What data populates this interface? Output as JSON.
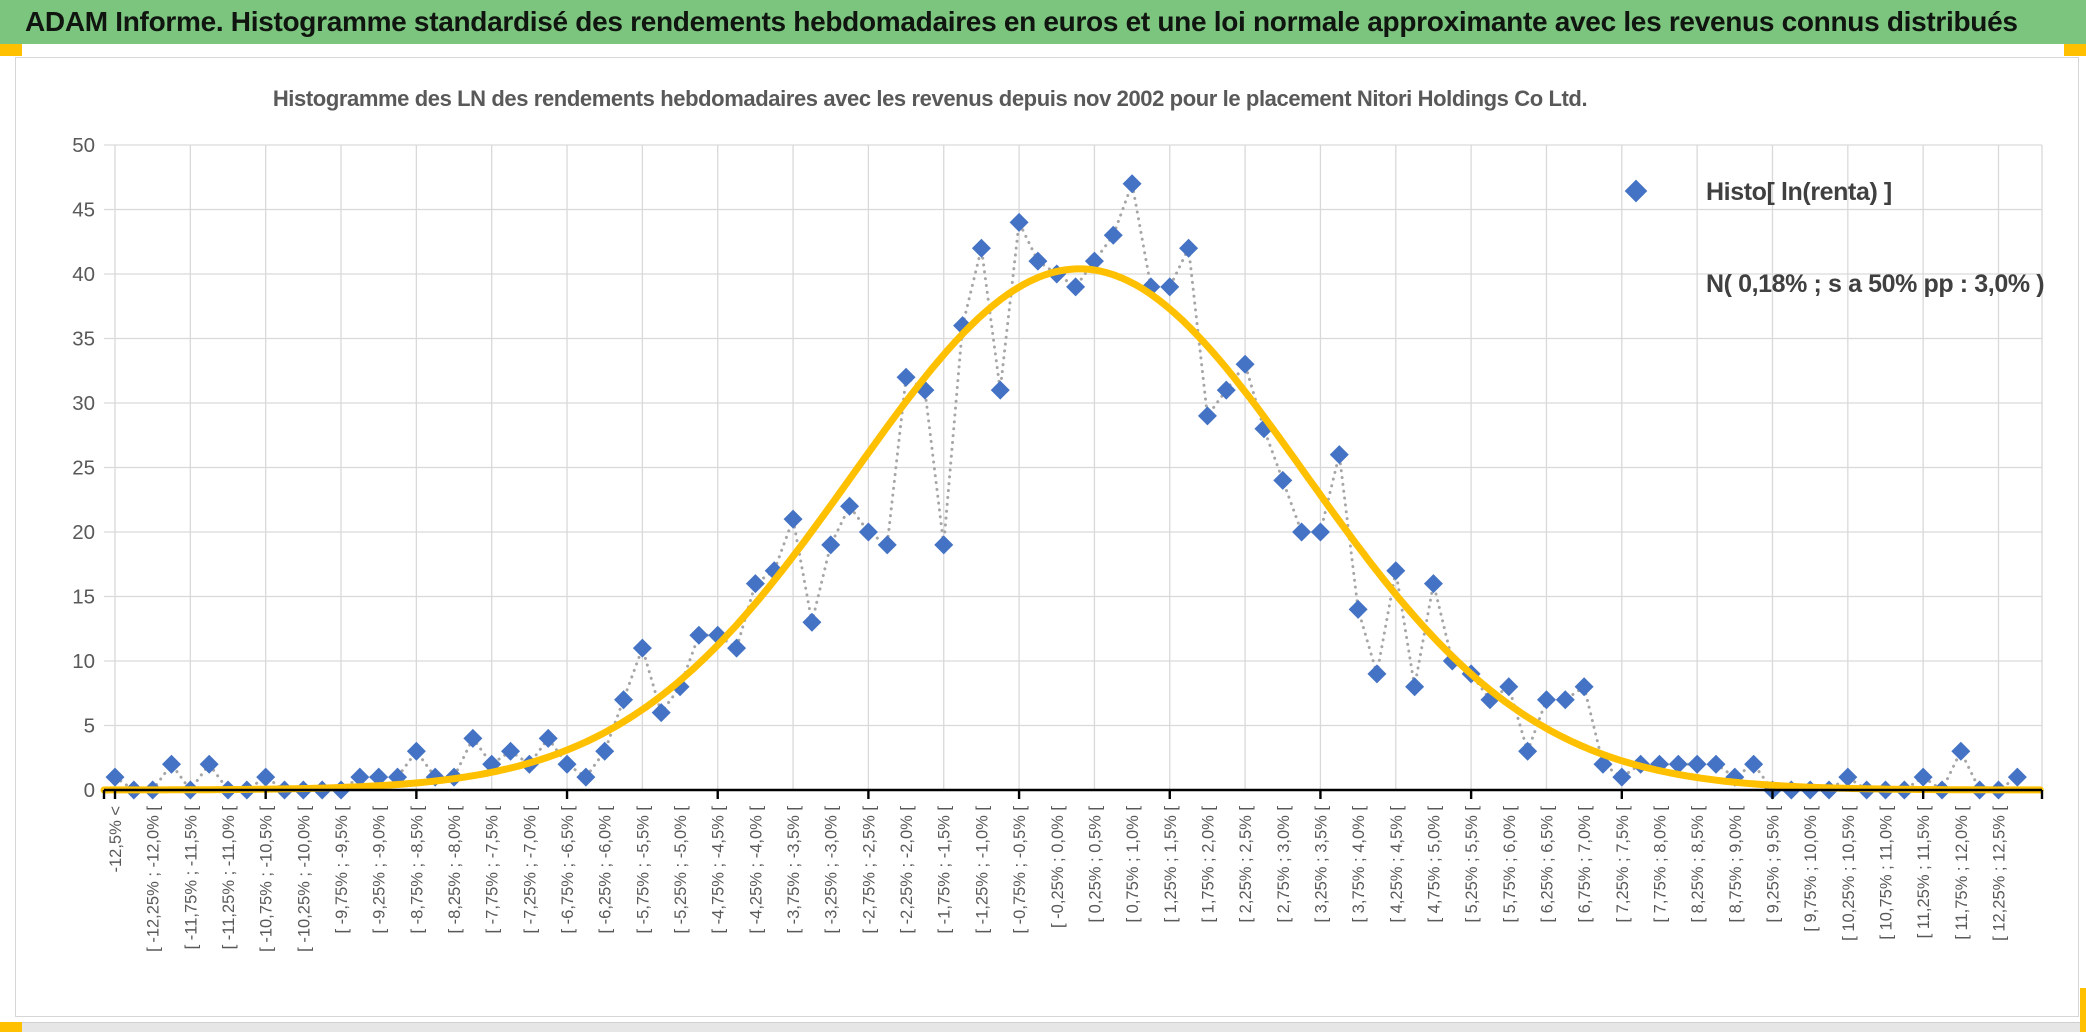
{
  "header": {
    "title": "ADAM Informe. Histogramme standardisé des rendements hebdomadaires en euros et une loi normale approximante avec les revenus connus distribués"
  },
  "chart": {
    "title": "Histogramme des LN des rendements hebdomadaires avec les revenus depuis nov 2002 pour le placement Nitori Holdings Co Ltd."
  },
  "legend": {
    "histogram_label": "Histo[ ln(renta) ]",
    "normal_label": "N( 0,18% ; s a 50% pp : 3,0% )"
  },
  "colors": {
    "header_green": "#7cc57f",
    "accent_gold": "#ffc000",
    "marker_blue": "#4472c4",
    "connector_gray": "#a6a6a6",
    "gridline_gray": "#d9d9d9",
    "axis_text_gray": "#595959",
    "axis_black": "#000000"
  },
  "chart_data": {
    "type": "line",
    "title": "Histogramme des LN des rendements hebdomadaires avec les revenus depuis nov 2002 pour le placement Nitori Holdings Co Ltd.",
    "xlabel": "",
    "ylabel": "",
    "ylim": [
      0,
      50
    ],
    "y_ticks": [
      0,
      5,
      10,
      15,
      20,
      25,
      30,
      35,
      40,
      45,
      50
    ],
    "grid": true,
    "legend_position": "top-right-inside",
    "x_bins": {
      "bin_width_pct": 0.25,
      "n_points": 102,
      "labels_every_n_bins": 2,
      "tick_labels": [
        "-12,5% <",
        "[ -12,25% ; -12,0% [",
        "[ -11,75% ; -11,5% [",
        "[ -11,25% ; -11,0% [",
        "[ -10,75% ; -10,5% [",
        "[ -10,25% ; -10,0% [",
        "[ -9,75% ; -9,5% [",
        "[ -9,25% ; -9,0% [",
        "[ -8,75% ; -8,5% [",
        "[ -8,25% ; -8,0% [",
        "[ -7,75% ; -7,5% [",
        "[ -7,25% ; -7,0% [",
        "[ -6,75% ; -6,5% [",
        "[ -6,25% ; -6,0% [",
        "[ -5,75% ; -5,5% [",
        "[ -5,25% ; -5,0% [",
        "[ -4,75% ; -4,5% [",
        "[ -4,25% ; -4,0% [",
        "[ -3,75% ; -3,5% [",
        "[ -3,25% ; -3,0% [",
        "[ -2,75% ; -2,5% [",
        "[ -2,25% ; -2,0% [",
        "[ -1,75% ; -1,5% [",
        "[ -1,25% ; -1,0% [",
        "[ -0,75% ; -0,5% [",
        "[ -0,25% ; 0,0% [",
        "[ 0,25% ; 0,5% [",
        "[ 0,75% ; 1,0% [",
        "[ 1,25% ; 1,5% [",
        "[ 1,75% ; 2,0% [",
        "[ 2,25% ; 2,5% [",
        "[ 2,75% ; 3,0% [",
        "[ 3,25% ; 3,5% [",
        "[ 3,75% ; 4,0% [",
        "[ 4,25% ; 4,5% [",
        "[ 4,75% ; 5,0% [",
        "[ 5,25% ; 5,5% [",
        "[ 5,75% ; 6,0% [",
        "[ 6,25% ; 6,5% [",
        "[ 6,75% ; 7,0% [",
        "[ 7,25% ; 7,5% [",
        "[ 7,75% ; 8,0% [",
        "[ 8,25% ; 8,5% [",
        "[ 8,75% ; 9,0% [",
        "[ 9,25% ; 9,5% [",
        "[ 9,75% ; 10,0% [",
        "[ 10,25% ; 10,5% [",
        "[ 10,75% ; 11,0% [",
        "[ 11,25% ; 11,5% [",
        "[ 11,75% ; 12,0% [",
        "[ 12,25% ; 12,5% ["
      ]
    },
    "series": [
      {
        "name": "Histo[ ln(renta) ]",
        "type": "scatter-dotted",
        "marker": "diamond",
        "marker_color": "#4472c4",
        "connector_color": "#a6a6a6",
        "values": [
          1,
          0,
          0,
          2,
          0,
          2,
          0,
          0,
          1,
          0,
          0,
          0,
          0,
          1,
          1,
          1,
          3,
          1,
          1,
          4,
          2,
          3,
          2,
          4,
          2,
          1,
          3,
          7,
          11,
          6,
          8,
          12,
          12,
          11,
          16,
          17,
          21,
          13,
          19,
          22,
          20,
          19,
          32,
          31,
          19,
          36,
          42,
          31,
          44,
          41,
          40,
          39,
          41,
          43,
          47,
          39,
          39,
          42,
          29,
          31,
          33,
          28,
          24,
          20,
          20,
          26,
          14,
          9,
          17,
          8,
          16,
          10,
          9,
          7,
          8,
          3,
          7,
          7,
          8,
          2,
          1,
          2,
          2,
          2,
          2,
          2,
          1,
          2,
          0,
          0,
          0,
          0,
          1,
          0,
          0,
          0,
          1,
          0,
          3,
          0,
          0,
          1
        ]
      },
      {
        "name": "N( 0,18% ; s a 50% pp : 3,0% )",
        "type": "gaussian-curve",
        "color": "#ffc000",
        "mean_pct": "0,18%",
        "sd_pct": "3,0%",
        "peak_value": 40.4,
        "center_bin_index": 51.2,
        "sigma_in_bins": 12
      }
    ]
  }
}
